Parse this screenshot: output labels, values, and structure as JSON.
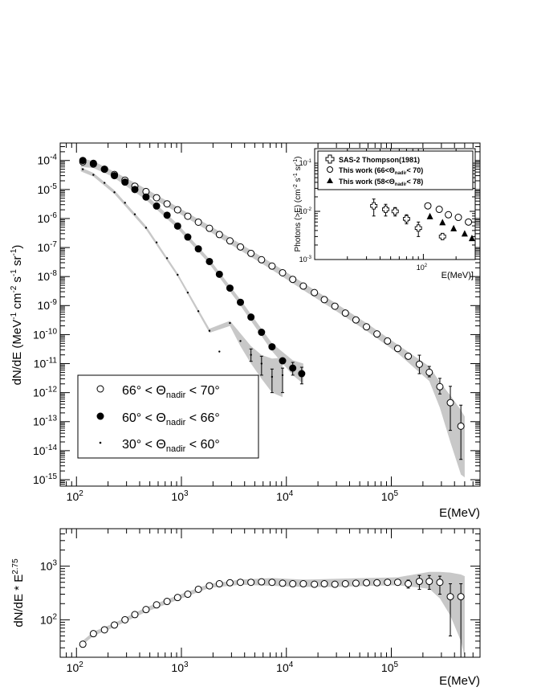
{
  "chart_data": [
    {
      "type": "scatter",
      "scale": {
        "x": "log",
        "y": "log"
      },
      "xlabel": "E(MeV)",
      "ylabel": "dN/dE (MeV-1 cm-2 s-1 sr-1)",
      "ylabel_parts": {
        "base": "dN/dE (MeV",
        "e1": "-1",
        "cm": " cm",
        "e2": "-2",
        "s": " s",
        "e3": "-1",
        "sr": " sr",
        "e4": "-1",
        "close": ")"
      },
      "xlim": [
        70,
        700000
      ],
      "ylim": [
        6e-16,
        0.0004
      ],
      "x_ticks": [
        {
          "value": 100,
          "base": "10",
          "exp": "2"
        },
        {
          "value": 1000,
          "base": "10",
          "exp": "3"
        },
        {
          "value": 10000,
          "base": "10",
          "exp": "4"
        },
        {
          "value": 100000,
          "base": "10",
          "exp": "5"
        }
      ],
      "y_ticks": [
        {
          "value": 0.0001,
          "base": "10",
          "exp": "-4"
        },
        {
          "value": 1e-05,
          "base": "10",
          "exp": "-5"
        },
        {
          "value": 1e-06,
          "base": "10",
          "exp": "-6"
        },
        {
          "value": 1e-07,
          "base": "10",
          "exp": "-7"
        },
        {
          "value": 1e-08,
          "base": "10",
          "exp": "-8"
        },
        {
          "value": 1e-09,
          "base": "10",
          "exp": "-9"
        },
        {
          "value": 1e-10,
          "base": "10",
          "exp": "-10"
        },
        {
          "value": 1e-11,
          "base": "10",
          "exp": "-11"
        },
        {
          "value": 1e-12,
          "base": "10",
          "exp": "-12"
        },
        {
          "value": 1e-13,
          "base": "10",
          "exp": "-13"
        },
        {
          "value": 1e-14,
          "base": "10",
          "exp": "-14"
        },
        {
          "value": 1e-15,
          "base": "10",
          "exp": "-15"
        }
      ],
      "legend": {
        "placement": "bottom-left",
        "entries": [
          {
            "marker": "open-circle",
            "pre": "66° < Θ",
            "sub": "nadir",
            "post": " < 70°"
          },
          {
            "marker": "filled-circle",
            "pre": "60° < Θ",
            "sub": "nadir",
            "post": " < 66°"
          },
          {
            "marker": "dot",
            "pre": "30° < Θ",
            "sub": "nadir",
            "post": " < 60°"
          }
        ]
      },
      "series": [
        {
          "marker": "open-circle",
          "x": [
            115,
            145,
            185,
            230,
            290,
            360,
            460,
            580,
            730,
            920,
            1150,
            1450,
            1850,
            2300,
            2900,
            3650,
            4600,
            5800,
            7300,
            9200,
            11500,
            14500,
            18500,
            23000,
            29000,
            36500,
            46000,
            58000,
            73000,
            92000,
            115000,
            145000,
            185000,
            230000,
            290000,
            365000,
            460000
          ],
          "y": [
            9e-05,
            7.5e-05,
            5e-05,
            3.3e-05,
            2.1e-05,
            1.3e-05,
            8.5e-06,
            5.2e-06,
            3.2e-06,
            2e-06,
            1.2e-06,
            7.5e-07,
            4.6e-07,
            2.8e-07,
            1.7e-07,
            1.05e-07,
            6.3e-08,
            3.8e-08,
            2.3e-08,
            1.35e-08,
            8e-09,
            4.7e-09,
            2.8e-09,
            1.6e-09,
            9.5e-10,
            5.5e-10,
            3.2e-10,
            1.85e-10,
            1.05e-10,
            6e-11,
            3.3e-11,
            1.8e-11,
            9.5e-12,
            5e-12,
            1.6e-12,
            4.5e-13,
            7e-14
          ],
          "y_err_hi": [
            0,
            0,
            0,
            0,
            0,
            0,
            0,
            0,
            0,
            0,
            0,
            0,
            0,
            0,
            0,
            0,
            0,
            0,
            0,
            0,
            0,
            0,
            0,
            0,
            0,
            0,
            0,
            0,
            0,
            0,
            0,
            0,
            1e-11,
            3e-12,
            1.5e-12,
            1.2e-12,
            3e-13
          ],
          "y_err_lo": [
            0,
            0,
            0,
            0,
            0,
            0,
            0,
            0,
            0,
            0,
            0,
            0,
            0,
            0,
            0,
            0,
            0,
            0,
            0,
            0,
            0,
            0,
            0,
            0,
            0,
            0,
            0,
            0,
            0,
            0,
            0,
            0,
            5e-12,
            1.5e-12,
            7e-13,
            4e-13,
            6.5e-14
          ]
        },
        {
          "marker": "filled-circle",
          "x": [
            115,
            145,
            185,
            230,
            290,
            360,
            460,
            580,
            730,
            920,
            1150,
            1450,
            1850,
            2300,
            2900,
            3650,
            4600,
            5800,
            7300,
            9200,
            11500,
            14000
          ],
          "y": [
            0.0001,
            8e-05,
            5e-05,
            3e-05,
            1.8e-05,
            1e-05,
            5.5e-06,
            2.7e-06,
            1.3e-06,
            5.5e-07,
            2.3e-07,
            9e-08,
            3.3e-08,
            1.2e-08,
            4e-09,
            1.3e-09,
            4e-10,
            1.2e-10,
            3.8e-11,
            1.25e-11,
            7e-12,
            4.5e-12
          ],
          "y_err_hi": [
            0,
            0,
            0,
            0,
            0,
            0,
            0,
            0,
            0,
            0,
            0,
            0,
            0,
            0,
            0,
            0,
            0,
            0,
            0,
            0,
            4e-12,
            3e-12
          ],
          "y_err_lo": [
            0,
            0,
            0,
            0,
            0,
            0,
            0,
            0,
            0,
            0,
            0,
            0,
            0,
            0,
            0,
            0,
            0,
            0,
            0,
            0,
            3e-12,
            2.5e-12
          ]
        },
        {
          "marker": "dot",
          "x": [
            115,
            145,
            185,
            230,
            290,
            360,
            460,
            580,
            730,
            920,
            1150,
            1450,
            1850,
            2300,
            2900,
            3650,
            4600,
            5800,
            7300,
            9200
          ],
          "y": [
            5e-05,
            3.2e-05,
            1.7e-05,
            8e-06,
            3.5e-06,
            1.4e-06,
            4.8e-07,
            1.5e-07,
            4.3e-08,
            1.15e-08,
            2.8e-09,
            6.4e-10,
            1.35e-10,
            2.6e-11,
            2.5e-10,
            6e-11,
            2e-11,
            1e-11,
            3.5e-12,
            4e-12
          ],
          "y_err_hi": [
            0,
            0,
            0,
            0,
            0,
            0,
            0,
            0,
            0,
            0,
            0,
            0,
            0,
            0,
            0,
            0,
            1.2e-11,
            8e-12,
            3e-12,
            3e-12
          ],
          "y_err_lo": [
            0,
            0,
            0,
            0,
            0,
            0,
            0,
            0,
            0,
            0,
            0,
            0,
            0,
            0,
            0,
            0,
            8e-12,
            6e-12,
            2.5e-12,
            3e-12
          ]
        }
      ],
      "bands": [
        {
          "x": [
            110,
            145,
            230,
            460,
            920,
            1850,
            3650,
            7300,
            14500,
            29000,
            58000,
            115000,
            230000,
            290000,
            365000,
            460000,
            500000
          ],
          "lo": [
            6e-05,
            5.5e-05,
            2.6e-05,
            6.5e-06,
            1.6e-06,
            3.6e-07,
            8e-08,
            1.7e-08,
            3.4e-09,
            6.9e-10,
            1.35e-10,
            2.3e-11,
            2.5e-12,
            3e-13,
            2e-14,
            1.5e-15,
            1.2e-15
          ],
          "hi": [
            0.00011,
            9.5e-05,
            4.1e-05,
            1.05e-05,
            2.5e-06,
            5.7e-07,
            1.35e-07,
            2.9e-08,
            6e-09,
            1.25e-09,
            2.5e-10,
            4.5e-11,
            8e-12,
            2.3e-12,
            8e-13,
            2.5e-13,
            1.5e-13
          ]
        },
        {
          "x": [
            110,
            145,
            230,
            460,
            920,
            1850,
            3650,
            7300,
            11500,
            14500
          ],
          "lo": [
            8e-05,
            6.5e-05,
            2.5e-05,
            4.4e-06,
            4.5e-07,
            2.7e-08,
            1e-09,
            2.7e-11,
            4e-12,
            2e-12
          ],
          "hi": [
            0.00012,
            9.5e-05,
            3.5e-05,
            6.6e-06,
            6.5e-07,
            4e-08,
            1.6e-09,
            5e-11,
            1.3e-11,
            1e-11
          ]
        },
        {
          "x": [
            110,
            145,
            230,
            460,
            920,
            1850,
            2900,
            3650,
            4600,
            5800,
            7300,
            9200
          ],
          "lo": [
            4.2e-05,
            2.8e-05,
            7e-06,
            4.2e-07,
            1e-08,
            1.15e-10,
            2e-10,
            4e-11,
            1e-11,
            3e-12,
            1e-12,
            7e-13
          ],
          "hi": [
            5.8e-05,
            3.7e-05,
            9.5e-06,
            5.6e-07,
            1.3e-08,
            1.6e-10,
            3e-10,
            1.1e-10,
            4e-11,
            2e-11,
            1.5e-11,
            1.6e-11
          ]
        }
      ]
    },
    {
      "type": "scatter",
      "placement": "inset-top-right",
      "scale": {
        "x": "log",
        "y": "log"
      },
      "xlabel": "E(MeV)]",
      "ylabel_parts": {
        "base": "Photons (>E) (cm",
        "e1": "-2",
        "s": " s",
        "e2": "-1",
        "sr": " sr",
        "e3": "-1",
        "close": ")"
      },
      "xlim": [
        10,
        300
      ],
      "ylim": [
        0.001,
        0.2
      ],
      "x_ticks": [
        {
          "value": 100,
          "base": "10",
          "exp": "2"
        }
      ],
      "y_ticks": [
        {
          "value": 0.1,
          "base": "10",
          "exp": "-1"
        },
        {
          "value": 0.01,
          "base": "10",
          "exp": "-2"
        },
        {
          "value": 0.001,
          "base": "10",
          "exp": "-3"
        }
      ],
      "legend": {
        "placement": "top",
        "entries": [
          {
            "marker": "open-cross",
            "text": "SAS-2 Thompson(1981)"
          },
          {
            "marker": "open-circle",
            "text": "This work (66<Θ",
            "sub": "nadir",
            "post": "< 70)"
          },
          {
            "marker": "filled-triangle",
            "text": "This work (58<Θ",
            "sub": "nadir",
            "post": "< 78)"
          }
        ]
      },
      "series": [
        {
          "marker": "open-cross",
          "x": [
            35,
            45,
            55,
            70,
            90,
            150
          ],
          "y": [
            0.013,
            0.011,
            0.01,
            0.007,
            0.0045,
            0.003
          ],
          "y_err": [
            0.005,
            0.003,
            0.002,
            0.0015,
            0.0015,
            0
          ]
        },
        {
          "marker": "open-circle",
          "x": [
            110,
            140,
            170,
            210,
            260
          ],
          "y": [
            0.013,
            0.011,
            0.0085,
            0.0075,
            0.006
          ]
        },
        {
          "marker": "filled-triangle",
          "x": [
            115,
            150,
            190,
            240,
            280
          ],
          "y": [
            0.008,
            0.006,
            0.0045,
            0.0035,
            0.0028
          ]
        }
      ]
    },
    {
      "type": "scatter",
      "scale": {
        "x": "log",
        "y": "log"
      },
      "xlabel": "E(MeV)",
      "ylabel_parts": {
        "base": "dN/dE * E",
        "exp": "2.75"
      },
      "xlim": [
        70,
        700000
      ],
      "ylim": [
        20,
        5000
      ],
      "x_ticks": [
        {
          "value": 100,
          "base": "10",
          "exp": "2"
        },
        {
          "value": 1000,
          "base": "10",
          "exp": "3"
        },
        {
          "value": 10000,
          "base": "10",
          "exp": "4"
        },
        {
          "value": 100000,
          "base": "10",
          "exp": "5"
        }
      ],
      "y_ticks": [
        {
          "value": 1000,
          "base": "10",
          "exp": "3"
        },
        {
          "value": 100,
          "base": "10",
          "exp": "2"
        }
      ],
      "series": [
        {
          "marker": "open-circle",
          "x": [
            115,
            145,
            185,
            230,
            290,
            360,
            460,
            580,
            730,
            920,
            1150,
            1450,
            1850,
            2300,
            2900,
            3650,
            4600,
            5800,
            7300,
            9200,
            11500,
            14500,
            18500,
            23000,
            29000,
            36500,
            46000,
            58000,
            73000,
            92000,
            115000,
            145000,
            185000,
            230000,
            290000,
            365000,
            460000
          ],
          "y": [
            35,
            55,
            65,
            80,
            100,
            125,
            155,
            190,
            220,
            260,
            300,
            370,
            430,
            470,
            490,
            500,
            500,
            510,
            500,
            480,
            470,
            470,
            460,
            470,
            460,
            470,
            480,
            490,
            490,
            500,
            500,
            470,
            520,
            520,
            500,
            270,
            270
          ],
          "y_err_hi": [
            0,
            0,
            0,
            0,
            0,
            0,
            0,
            0,
            0,
            0,
            0,
            0,
            0,
            0,
            0,
            0,
            0,
            0,
            0,
            0,
            0,
            0,
            0,
            0,
            0,
            0,
            0,
            0,
            0,
            0,
            0,
            80,
            150,
            150,
            150,
            200,
            200
          ],
          "y_err_lo": [
            0,
            0,
            0,
            0,
            0,
            0,
            0,
            0,
            0,
            0,
            0,
            0,
            0,
            0,
            0,
            0,
            0,
            0,
            0,
            0,
            0,
            0,
            0,
            0,
            0,
            0,
            0,
            0,
            0,
            0,
            0,
            80,
            150,
            150,
            200,
            220,
            250
          ]
        }
      ],
      "bands": [
        {
          "x": [
            110,
            145,
            230,
            460,
            920,
            1850,
            3650,
            7300,
            14500,
            29000,
            58000,
            115000,
            230000,
            290000,
            365000,
            460000,
            500000
          ],
          "lo": [
            32,
            50,
            73,
            140,
            235,
            395,
            450,
            430,
            410,
            410,
            430,
            440,
            380,
            250,
            120,
            40,
            20
          ],
          "hi": [
            38,
            60,
            87,
            170,
            285,
            465,
            560,
            600,
            560,
            580,
            600,
            620,
            780,
            780,
            760,
            700,
            650
          ]
        }
      ]
    }
  ]
}
